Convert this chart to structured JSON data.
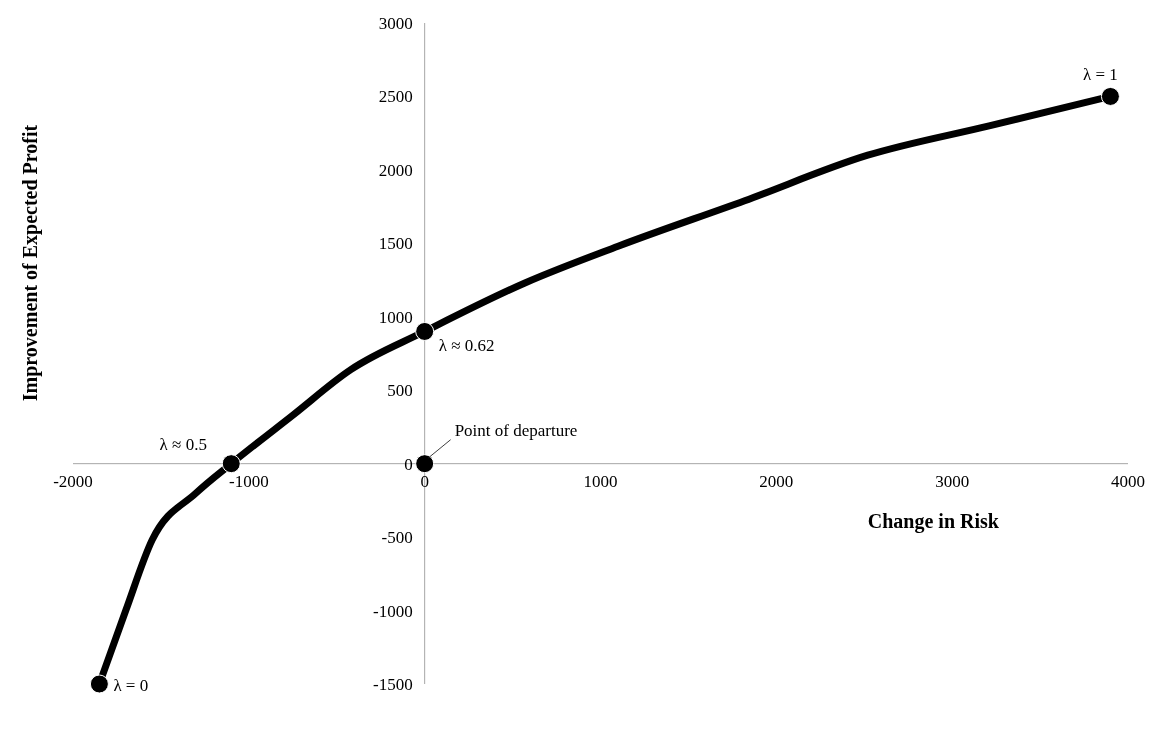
{
  "chart_data": {
    "type": "line",
    "xlabel": "Change in Risk",
    "ylabel": "Improvement of Expected Profit",
    "xlim": [
      -2000,
      4000
    ],
    "xticks": [
      -2000,
      -1000,
      0,
      1000,
      2000,
      3000,
      4000
    ],
    "ylim": [
      -1500,
      3000
    ],
    "yticks": [
      -1500,
      -1000,
      -500,
      0,
      500,
      1000,
      1500,
      2000,
      2500,
      3000
    ],
    "grid": false,
    "legend": false,
    "line_style": "solid",
    "series": [
      {
        "color": "#000000",
        "x": [
          -1850,
          -1700,
          -1550,
          -1300,
          -1100,
          -750,
          -420,
          0,
          570,
          1100,
          1820,
          2520,
          3210,
          3900
        ],
        "values": [
          -1500,
          -1000,
          -520,
          -200,
          0,
          330,
          640,
          900,
          1230,
          1480,
          1790,
          2100,
          2300,
          2500
        ]
      },
      {
        "type": "scatter",
        "color": "#000000",
        "x": [
          -1850,
          -1100,
          0,
          3900,
          0
        ],
        "values": [
          -1500,
          0,
          900,
          2500,
          0
        ]
      }
    ],
    "annotations": [
      {
        "text": "λ = 0",
        "x": -1850,
        "y": -1500
      },
      {
        "text": "λ ≈ 0.5",
        "x": -1100,
        "y": 0
      },
      {
        "text": "λ ≈ 0.62",
        "x": 0,
        "y": 900
      },
      {
        "text": "λ = 1",
        "x": 3900,
        "y": 2500
      },
      {
        "text": "Point of departure",
        "x": 0,
        "y": 0
      }
    ]
  }
}
